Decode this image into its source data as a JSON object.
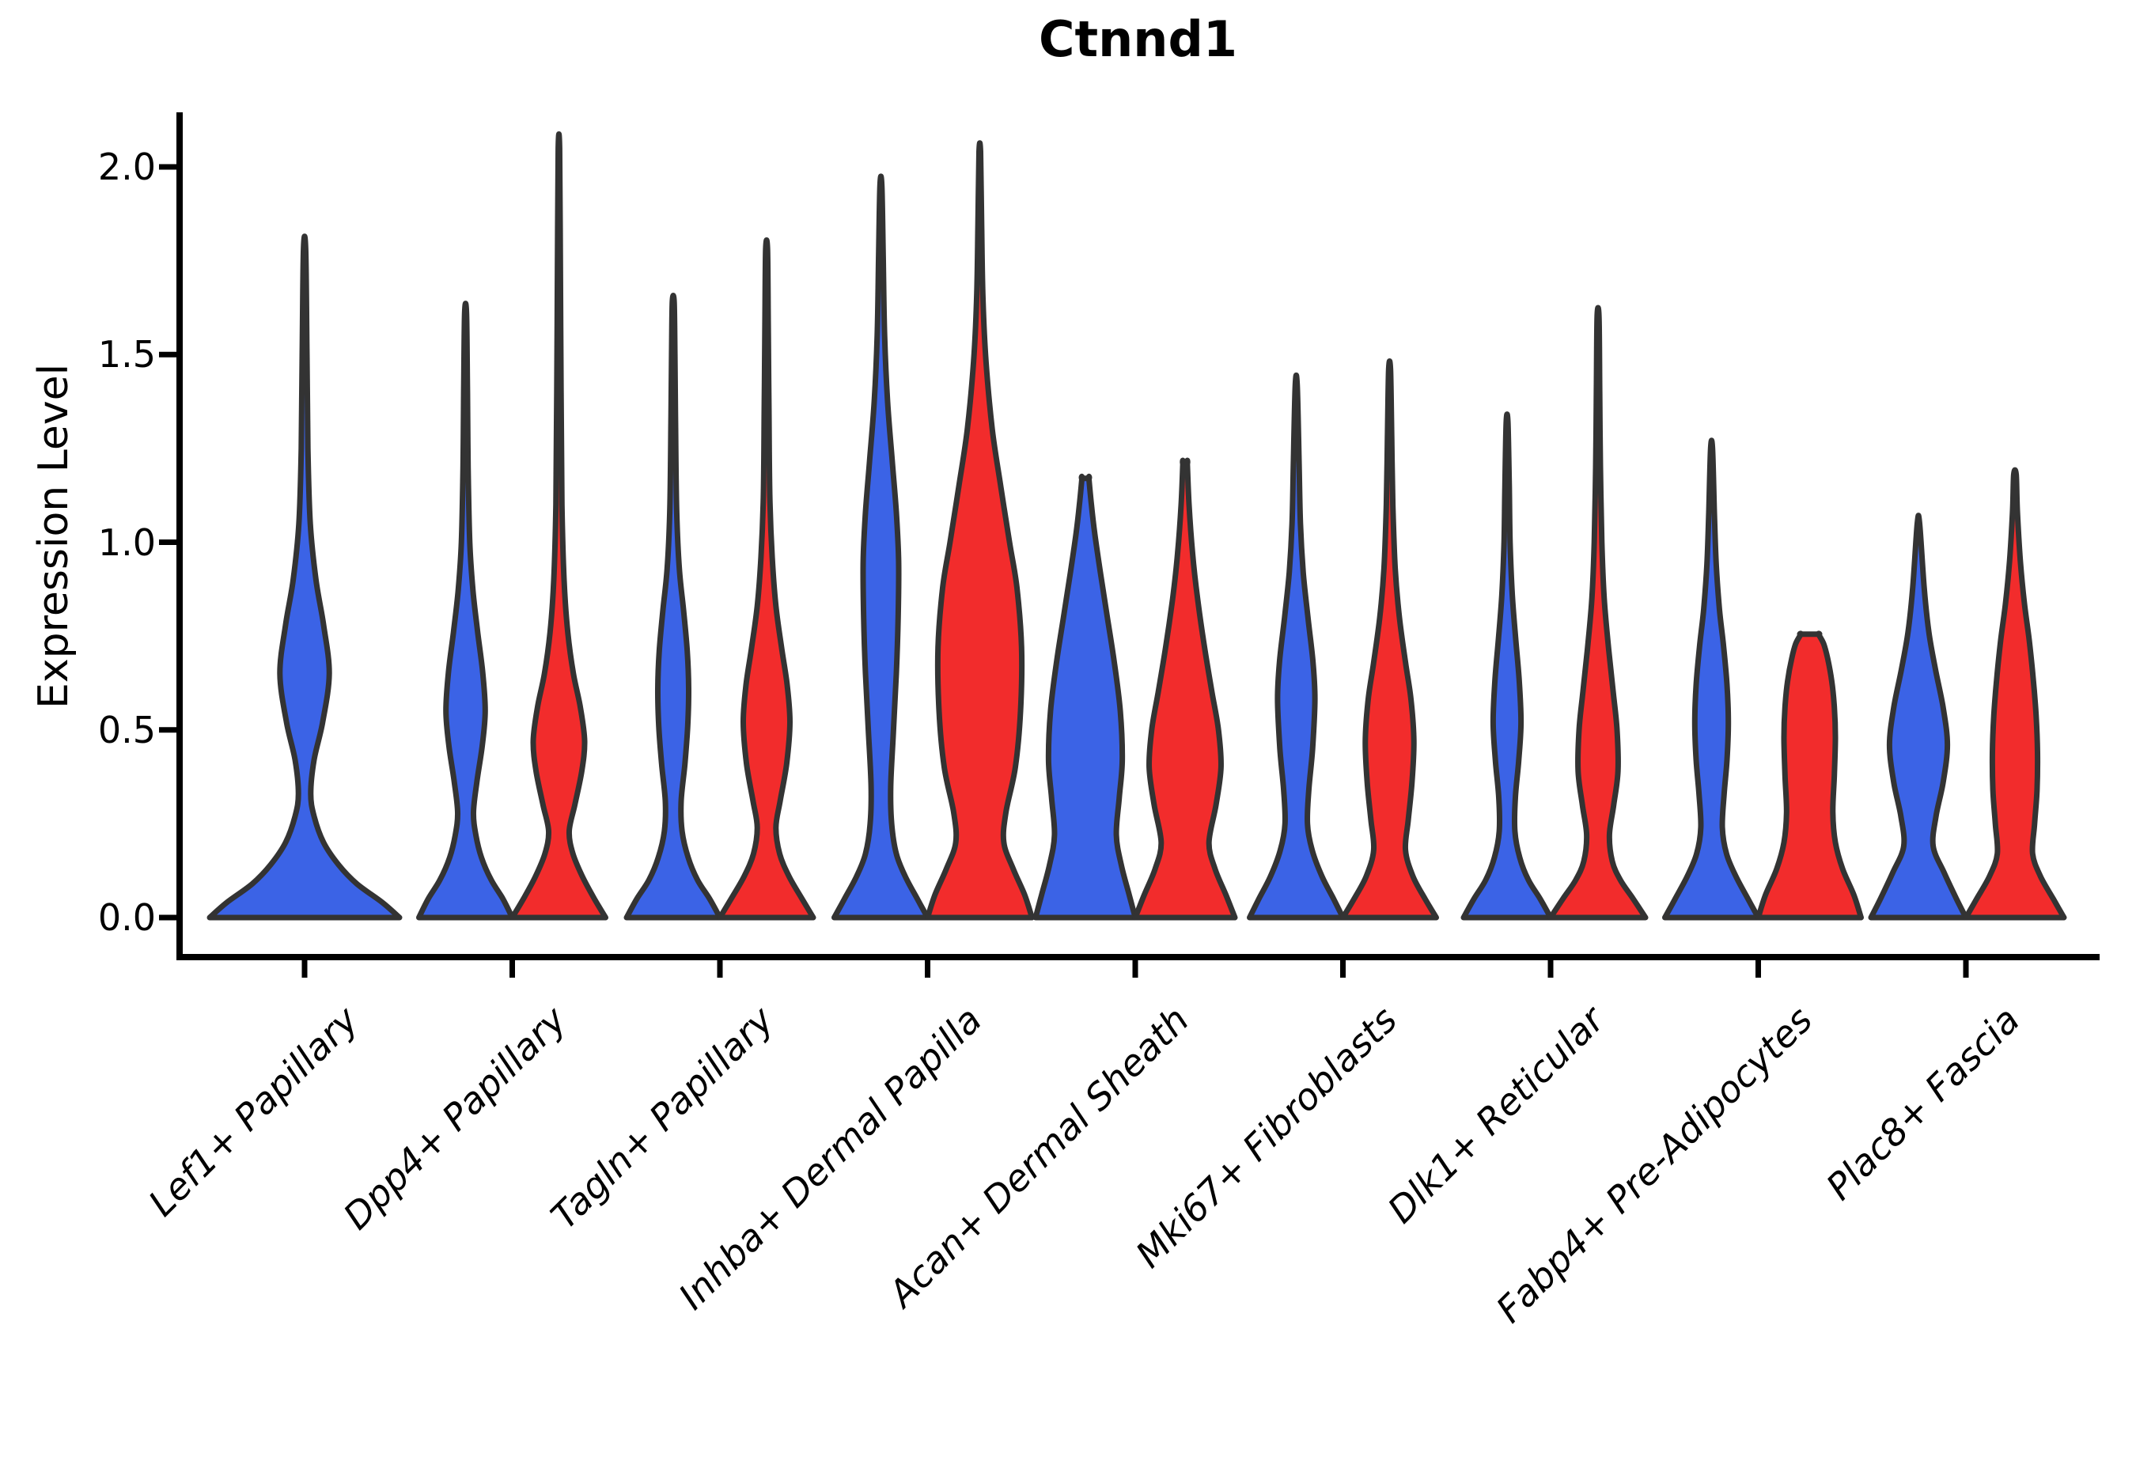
{
  "chart": {
    "title": "Ctnnd1",
    "ylabel": "Expression Level"
  },
  "chart_data": {
    "type": "violin",
    "title": "Ctnnd1",
    "xlabel": "",
    "ylabel": "Expression Level",
    "ylim": [
      0,
      2.15
    ],
    "yticks": [
      0.0,
      0.5,
      1.0,
      1.5,
      2.0
    ],
    "ytick_labels": [
      "0.0",
      "0.5",
      "1.0",
      "1.5",
      "2.0"
    ],
    "grid": false,
    "legend": "none",
    "categories": [
      "Lef1+ Papillary",
      "Dpp4+ Papillary",
      "Tagln+ Papillary",
      "Inhba+ Dermal Papilla",
      "Acan+ Dermal Sheath",
      "Mki67+ Fibroblasts",
      "Dlk1+ Reticular",
      "Fabp4+ Pre-Adipocytes",
      "Plac8+ Fascia"
    ],
    "series_colors": {
      "blue": "#3B63E6",
      "red": "#F22C2C"
    },
    "edge_color": "#333333",
    "axis_color": "#000000",
    "violins": [
      {
        "category_index": 0,
        "group": "blue",
        "side": "center",
        "max": 1.78,
        "half_width": 120,
        "blunt": false,
        "profile": [
          [
            0,
            1.0
          ],
          [
            0.04,
            0.82
          ],
          [
            0.09,
            0.55
          ],
          [
            0.14,
            0.36
          ],
          [
            0.2,
            0.2
          ],
          [
            0.27,
            0.1
          ],
          [
            0.33,
            0.065
          ],
          [
            0.42,
            0.1
          ],
          [
            0.52,
            0.19
          ],
          [
            0.65,
            0.26
          ],
          [
            0.78,
            0.2
          ],
          [
            0.9,
            0.12
          ],
          [
            1.05,
            0.06
          ],
          [
            1.25,
            0.035
          ],
          [
            1.5,
            0.025
          ],
          [
            1.78,
            0.012
          ]
        ]
      },
      {
        "category_index": 1,
        "group": "blue",
        "side": "left",
        "max": 1.61,
        "half_width": 59,
        "blunt": false,
        "profile": [
          [
            0,
            1.0
          ],
          [
            0.05,
            0.8
          ],
          [
            0.1,
            0.55
          ],
          [
            0.16,
            0.34
          ],
          [
            0.22,
            0.22
          ],
          [
            0.28,
            0.17
          ],
          [
            0.36,
            0.24
          ],
          [
            0.46,
            0.36
          ],
          [
            0.55,
            0.42
          ],
          [
            0.65,
            0.37
          ],
          [
            0.76,
            0.26
          ],
          [
            0.87,
            0.16
          ],
          [
            1.0,
            0.09
          ],
          [
            1.2,
            0.055
          ],
          [
            1.4,
            0.04
          ],
          [
            1.61,
            0.02
          ]
        ]
      },
      {
        "category_index": 1,
        "group": "red",
        "side": "right",
        "max": 2.05,
        "half_width": 59,
        "blunt": false,
        "profile": [
          [
            0,
            1.0
          ],
          [
            0.05,
            0.76
          ],
          [
            0.11,
            0.5
          ],
          [
            0.17,
            0.3
          ],
          [
            0.23,
            0.22
          ],
          [
            0.3,
            0.34
          ],
          [
            0.39,
            0.49
          ],
          [
            0.47,
            0.55
          ],
          [
            0.56,
            0.46
          ],
          [
            0.65,
            0.31
          ],
          [
            0.76,
            0.19
          ],
          [
            0.9,
            0.11
          ],
          [
            1.1,
            0.065
          ],
          [
            1.4,
            0.045
          ],
          [
            1.75,
            0.03
          ],
          [
            2.05,
            0.015
          ]
        ]
      },
      {
        "category_index": 2,
        "group": "blue",
        "side": "left",
        "max": 1.64,
        "half_width": 59,
        "blunt": false,
        "profile": [
          [
            0,
            1.0
          ],
          [
            0.05,
            0.78
          ],
          [
            0.1,
            0.52
          ],
          [
            0.16,
            0.32
          ],
          [
            0.23,
            0.19
          ],
          [
            0.31,
            0.17
          ],
          [
            0.41,
            0.25
          ],
          [
            0.51,
            0.31
          ],
          [
            0.61,
            0.33
          ],
          [
            0.71,
            0.3
          ],
          [
            0.82,
            0.22
          ],
          [
            0.93,
            0.13
          ],
          [
            1.08,
            0.075
          ],
          [
            1.3,
            0.05
          ],
          [
            1.5,
            0.035
          ],
          [
            1.64,
            0.02
          ]
        ]
      },
      {
        "category_index": 2,
        "group": "red",
        "side": "right",
        "max": 1.78,
        "half_width": 59,
        "blunt": false,
        "profile": [
          [
            0,
            1.0
          ],
          [
            0.05,
            0.76
          ],
          [
            0.11,
            0.48
          ],
          [
            0.17,
            0.28
          ],
          [
            0.24,
            0.2
          ],
          [
            0.31,
            0.29
          ],
          [
            0.41,
            0.43
          ],
          [
            0.52,
            0.5
          ],
          [
            0.62,
            0.44
          ],
          [
            0.72,
            0.32
          ],
          [
            0.83,
            0.2
          ],
          [
            0.96,
            0.12
          ],
          [
            1.12,
            0.07
          ],
          [
            1.35,
            0.05
          ],
          [
            1.58,
            0.035
          ],
          [
            1.78,
            0.02
          ]
        ]
      },
      {
        "category_index": 3,
        "group": "blue",
        "side": "left",
        "max": 1.95,
        "half_width": 59,
        "blunt": false,
        "profile": [
          [
            0,
            1.0
          ],
          [
            0.05,
            0.78
          ],
          [
            0.11,
            0.52
          ],
          [
            0.17,
            0.33
          ],
          [
            0.25,
            0.23
          ],
          [
            0.35,
            0.21
          ],
          [
            0.5,
            0.27
          ],
          [
            0.65,
            0.33
          ],
          [
            0.8,
            0.37
          ],
          [
            0.95,
            0.38
          ],
          [
            1.08,
            0.33
          ],
          [
            1.22,
            0.24
          ],
          [
            1.38,
            0.14
          ],
          [
            1.55,
            0.08
          ],
          [
            1.75,
            0.05
          ],
          [
            1.95,
            0.02
          ]
        ]
      },
      {
        "category_index": 3,
        "group": "red",
        "side": "right",
        "max": 2.04,
        "half_width": 66,
        "blunt": false,
        "profile": [
          [
            0,
            1.0
          ],
          [
            0.06,
            0.86
          ],
          [
            0.13,
            0.64
          ],
          [
            0.2,
            0.46
          ],
          [
            0.28,
            0.5
          ],
          [
            0.4,
            0.68
          ],
          [
            0.55,
            0.78
          ],
          [
            0.72,
            0.8
          ],
          [
            0.88,
            0.71
          ],
          [
            1.0,
            0.57
          ],
          [
            1.15,
            0.4
          ],
          [
            1.3,
            0.24
          ],
          [
            1.48,
            0.12
          ],
          [
            1.65,
            0.06
          ],
          [
            1.85,
            0.035
          ],
          [
            2.04,
            0.015
          ]
        ]
      },
      {
        "category_index": 4,
        "group": "blue",
        "side": "left",
        "max": 1.17,
        "half_width": 63,
        "blunt": true,
        "profile": [
          [
            0,
            1.0
          ],
          [
            0.06,
            0.88
          ],
          [
            0.14,
            0.72
          ],
          [
            0.22,
            0.62
          ],
          [
            0.32,
            0.68
          ],
          [
            0.42,
            0.74
          ],
          [
            0.55,
            0.7
          ],
          [
            0.68,
            0.58
          ],
          [
            0.8,
            0.44
          ],
          [
            0.92,
            0.3
          ],
          [
            1.02,
            0.19
          ],
          [
            1.1,
            0.12
          ],
          [
            1.17,
            0.07
          ]
        ]
      },
      {
        "category_index": 4,
        "group": "red",
        "side": "right",
        "max": 1.21,
        "half_width": 63,
        "blunt": true,
        "profile": [
          [
            0,
            1.0
          ],
          [
            0.06,
            0.82
          ],
          [
            0.13,
            0.6
          ],
          [
            0.2,
            0.48
          ],
          [
            0.3,
            0.62
          ],
          [
            0.4,
            0.72
          ],
          [
            0.5,
            0.67
          ],
          [
            0.6,
            0.54
          ],
          [
            0.72,
            0.39
          ],
          [
            0.85,
            0.25
          ],
          [
            0.97,
            0.15
          ],
          [
            1.1,
            0.08
          ],
          [
            1.21,
            0.045
          ]
        ]
      },
      {
        "category_index": 5,
        "group": "blue",
        "side": "left",
        "max": 1.42,
        "half_width": 59,
        "blunt": false,
        "profile": [
          [
            0,
            1.0
          ],
          [
            0.05,
            0.8
          ],
          [
            0.11,
            0.55
          ],
          [
            0.18,
            0.34
          ],
          [
            0.25,
            0.24
          ],
          [
            0.34,
            0.27
          ],
          [
            0.45,
            0.35
          ],
          [
            0.58,
            0.4
          ],
          [
            0.68,
            0.36
          ],
          [
            0.8,
            0.25
          ],
          [
            0.92,
            0.15
          ],
          [
            1.05,
            0.09
          ],
          [
            1.22,
            0.06
          ],
          [
            1.42,
            0.02
          ]
        ]
      },
      {
        "category_index": 5,
        "group": "red",
        "side": "right",
        "max": 1.46,
        "half_width": 59,
        "blunt": false,
        "profile": [
          [
            0,
            1.0
          ],
          [
            0.05,
            0.76
          ],
          [
            0.11,
            0.5
          ],
          [
            0.18,
            0.34
          ],
          [
            0.26,
            0.4
          ],
          [
            0.36,
            0.48
          ],
          [
            0.47,
            0.52
          ],
          [
            0.58,
            0.46
          ],
          [
            0.68,
            0.34
          ],
          [
            0.8,
            0.21
          ],
          [
            0.93,
            0.12
          ],
          [
            1.1,
            0.07
          ],
          [
            1.28,
            0.045
          ],
          [
            1.46,
            0.02
          ]
        ]
      },
      {
        "category_index": 6,
        "group": "blue",
        "side": "left",
        "max": 1.32,
        "half_width": 55,
        "blunt": false,
        "profile": [
          [
            0,
            1.0
          ],
          [
            0.05,
            0.76
          ],
          [
            0.1,
            0.49
          ],
          [
            0.16,
            0.29
          ],
          [
            0.23,
            0.18
          ],
          [
            0.32,
            0.19
          ],
          [
            0.42,
            0.27
          ],
          [
            0.52,
            0.32
          ],
          [
            0.63,
            0.28
          ],
          [
            0.74,
            0.2
          ],
          [
            0.86,
            0.12
          ],
          [
            1.0,
            0.07
          ],
          [
            1.15,
            0.05
          ],
          [
            1.32,
            0.02
          ]
        ]
      },
      {
        "category_index": 6,
        "group": "red",
        "side": "right",
        "max": 1.6,
        "half_width": 60,
        "blunt": false,
        "profile": [
          [
            0,
            1.0
          ],
          [
            0.05,
            0.74
          ],
          [
            0.1,
            0.47
          ],
          [
            0.15,
            0.3
          ],
          [
            0.22,
            0.24
          ],
          [
            0.3,
            0.33
          ],
          [
            0.39,
            0.42
          ],
          [
            0.5,
            0.4
          ],
          [
            0.6,
            0.32
          ],
          [
            0.72,
            0.22
          ],
          [
            0.85,
            0.13
          ],
          [
            1.0,
            0.08
          ],
          [
            1.2,
            0.05
          ],
          [
            1.4,
            0.035
          ],
          [
            1.6,
            0.02
          ]
        ]
      },
      {
        "category_index": 7,
        "group": "blue",
        "side": "left",
        "max": 1.25,
        "half_width": 59,
        "blunt": false,
        "profile": [
          [
            0,
            1.0
          ],
          [
            0.05,
            0.78
          ],
          [
            0.11,
            0.52
          ],
          [
            0.17,
            0.32
          ],
          [
            0.24,
            0.23
          ],
          [
            0.33,
            0.27
          ],
          [
            0.42,
            0.33
          ],
          [
            0.52,
            0.36
          ],
          [
            0.62,
            0.33
          ],
          [
            0.72,
            0.26
          ],
          [
            0.82,
            0.17
          ],
          [
            0.94,
            0.1
          ],
          [
            1.08,
            0.06
          ],
          [
            1.25,
            0.02
          ]
        ]
      },
      {
        "category_index": 7,
        "group": "red",
        "side": "right",
        "max": 0.755,
        "half_width": 65,
        "blunt": true,
        "profile": [
          [
            0,
            1.0
          ],
          [
            0.06,
            0.86
          ],
          [
            0.13,
            0.64
          ],
          [
            0.2,
            0.5
          ],
          [
            0.28,
            0.45
          ],
          [
            0.38,
            0.48
          ],
          [
            0.48,
            0.5
          ],
          [
            0.56,
            0.48
          ],
          [
            0.63,
            0.43
          ],
          [
            0.69,
            0.35
          ],
          [
            0.73,
            0.27
          ],
          [
            0.755,
            0.17
          ]
        ]
      },
      {
        "category_index": 8,
        "group": "blue",
        "side": "left",
        "max": 1.05,
        "half_width": 60,
        "blunt": false,
        "profile": [
          [
            0,
            1.0
          ],
          [
            0.05,
            0.8
          ],
          [
            0.12,
            0.54
          ],
          [
            0.19,
            0.31
          ],
          [
            0.27,
            0.37
          ],
          [
            0.36,
            0.52
          ],
          [
            0.46,
            0.61
          ],
          [
            0.56,
            0.52
          ],
          [
            0.66,
            0.36
          ],
          [
            0.76,
            0.22
          ],
          [
            0.88,
            0.12
          ],
          [
            1.05,
            0.025
          ]
        ]
      },
      {
        "category_index": 8,
        "group": "red",
        "side": "right",
        "max": 1.18,
        "half_width": 62,
        "blunt": false,
        "profile": [
          [
            0,
            1.0
          ],
          [
            0.05,
            0.78
          ],
          [
            0.11,
            0.52
          ],
          [
            0.17,
            0.36
          ],
          [
            0.25,
            0.4
          ],
          [
            0.34,
            0.45
          ],
          [
            0.44,
            0.46
          ],
          [
            0.54,
            0.43
          ],
          [
            0.64,
            0.37
          ],
          [
            0.74,
            0.29
          ],
          [
            0.84,
            0.19
          ],
          [
            0.95,
            0.11
          ],
          [
            1.08,
            0.05
          ],
          [
            1.18,
            0.025
          ]
        ]
      }
    ]
  }
}
